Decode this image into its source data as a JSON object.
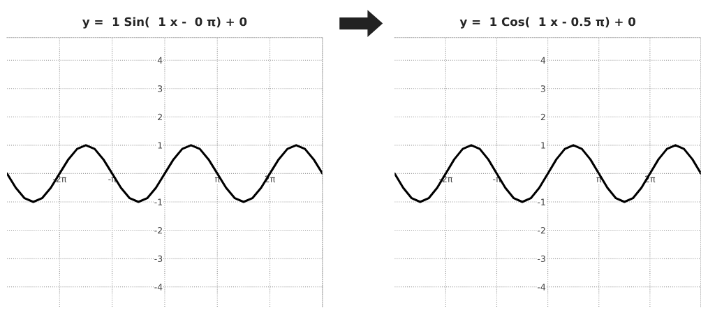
{
  "chart_data": [
    {
      "type": "line",
      "title": "y =  1 Sin(  1 x -  0 π) + 0",
      "x": [
        -9.4248,
        -8.9012,
        -8.3776,
        -7.854,
        -7.3304,
        -6.8068,
        -6.2832,
        -5.7596,
        -5.236,
        -4.7124,
        -4.1888,
        -3.6652,
        -3.1416,
        -2.618,
        -2.0944,
        -1.5708,
        -1.0472,
        -0.5236,
        0,
        0.5236,
        1.0472,
        1.5708,
        2.0944,
        2.618,
        3.1416,
        3.6652,
        4.1888,
        4.7124,
        5.236,
        5.7596,
        6.2832,
        6.8068,
        7.3304,
        7.854,
        8.3776,
        8.9012,
        9.4248
      ],
      "series": [
        {
          "color": "#000000",
          "values": [
            0,
            -0.5,
            -0.87,
            -1,
            -0.87,
            -0.5,
            0,
            0.5,
            0.87,
            1,
            0.87,
            0.5,
            0,
            -0.5,
            -0.87,
            -1,
            -0.87,
            -0.5,
            0,
            0.5,
            0.87,
            1,
            0.87,
            0.5,
            0,
            -0.5,
            -0.87,
            -1,
            -0.87,
            -0.5,
            0,
            0.5,
            0.87,
            1,
            0.87,
            0.5,
            0
          ]
        }
      ],
      "xlim": [
        -9.4248,
        9.4248
      ],
      "xticks": [
        {
          "value": -6.2832,
          "label": "-2π"
        },
        {
          "value": -3.1416,
          "label": "-π"
        },
        {
          "value": 0,
          "label": null
        },
        {
          "value": 3.1416,
          "label": "π"
        },
        {
          "value": 6.2832,
          "label": "2π"
        }
      ],
      "ylim": [
        -4.7,
        4.8
      ],
      "yticks": [
        -4,
        -3,
        -2,
        -1,
        {
          "value": 0,
          "label": null
        },
        1,
        2,
        3,
        4
      ],
      "grid": true,
      "line_style": "solid",
      "marker": "none"
    },
    {
      "type": "line",
      "title": "y =  1 Cos(  1 x - 0.5 π) + 0",
      "x": [
        -9.4248,
        -8.9012,
        -8.3776,
        -7.854,
        -7.3304,
        -6.8068,
        -6.2832,
        -5.7596,
        -5.236,
        -4.7124,
        -4.1888,
        -3.6652,
        -3.1416,
        -2.618,
        -2.0944,
        -1.5708,
        -1.0472,
        -0.5236,
        0,
        0.5236,
        1.0472,
        1.5708,
        2.0944,
        2.618,
        3.1416,
        3.6652,
        4.1888,
        4.7124,
        5.236,
        5.7596,
        6.2832,
        6.8068,
        7.3304,
        7.854,
        8.3776,
        8.9012,
        9.4248
      ],
      "series": [
        {
          "color": "#000000",
          "values": [
            0,
            -0.5,
            -0.87,
            -1,
            -0.87,
            -0.5,
            0,
            0.5,
            0.87,
            1,
            0.87,
            0.5,
            0,
            -0.5,
            -0.87,
            -1,
            -0.87,
            -0.5,
            0,
            0.5,
            0.87,
            1,
            0.87,
            0.5,
            0,
            -0.5,
            -0.87,
            -1,
            -0.87,
            -0.5,
            0,
            0.5,
            0.87,
            1,
            0.87,
            0.5,
            0
          ]
        }
      ],
      "xlim": [
        -9.4248,
        9.4248
      ],
      "xticks": [
        {
          "value": -6.2832,
          "label": "-2π"
        },
        {
          "value": -3.1416,
          "label": "-π"
        },
        {
          "value": 0,
          "label": null
        },
        {
          "value": 3.1416,
          "label": "π"
        },
        {
          "value": 6.2832,
          "label": "2π"
        }
      ],
      "ylim": [
        -4.7,
        4.8
      ],
      "yticks": [
        -4,
        -3,
        -2,
        -1,
        {
          "value": 0,
          "label": null
        },
        1,
        2,
        3,
        4
      ],
      "grid": true,
      "line_style": "solid",
      "marker": "none"
    }
  ]
}
